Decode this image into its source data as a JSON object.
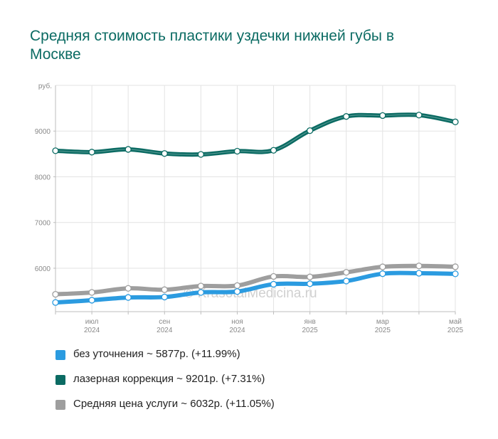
{
  "title": "Средняя стоимость пластики уздечки нижней губы в Москве",
  "watermark": "© KrasotaiMedicina.ru",
  "chart_data": {
    "type": "line",
    "y_unit": "руб.",
    "y_ticks": [
      6000,
      7000,
      8000,
      9000
    ],
    "ylim": [
      5050,
      10000
    ],
    "grid": true,
    "x_count": 12,
    "x_tick_labels": [
      {
        "index": 1,
        "month": "июл",
        "year": "2024"
      },
      {
        "index": 3,
        "month": "сен",
        "year": "2024"
      },
      {
        "index": 5,
        "month": "ноя",
        "year": "2024"
      },
      {
        "index": 7,
        "month": "янв",
        "year": "2025"
      },
      {
        "index": 9,
        "month": "мар",
        "year": "2025"
      },
      {
        "index": 11,
        "month": "май",
        "year": "2025"
      }
    ],
    "series": [
      {
        "key": "avg",
        "color": "#9e9e9e",
        "values": [
          5430,
          5470,
          5560,
          5530,
          5610,
          5620,
          5820,
          5810,
          5910,
          6030,
          6050,
          6032
        ]
      },
      {
        "key": "none",
        "color": "#2b9be0",
        "values": [
          5250,
          5300,
          5360,
          5370,
          5470,
          5490,
          5650,
          5660,
          5720,
          5880,
          5890,
          5877
        ]
      },
      {
        "key": "laser",
        "color": "#0b6b63",
        "values": [
          8570,
          8540,
          8600,
          8510,
          8490,
          8560,
          8580,
          9010,
          9320,
          9340,
          9350,
          9201
        ]
      }
    ]
  },
  "legend": [
    {
      "label": "без уточнения ~ 5877р. (+11.99%)",
      "color": "#2b9be0"
    },
    {
      "label": "лазерная коррекция ~ 9201р. (+7.31%)",
      "color": "#0b6b63"
    },
    {
      "label": "Средняя цена услуги ~ 6032р. (+11.05%)",
      "color": "#9e9e9e"
    }
  ]
}
